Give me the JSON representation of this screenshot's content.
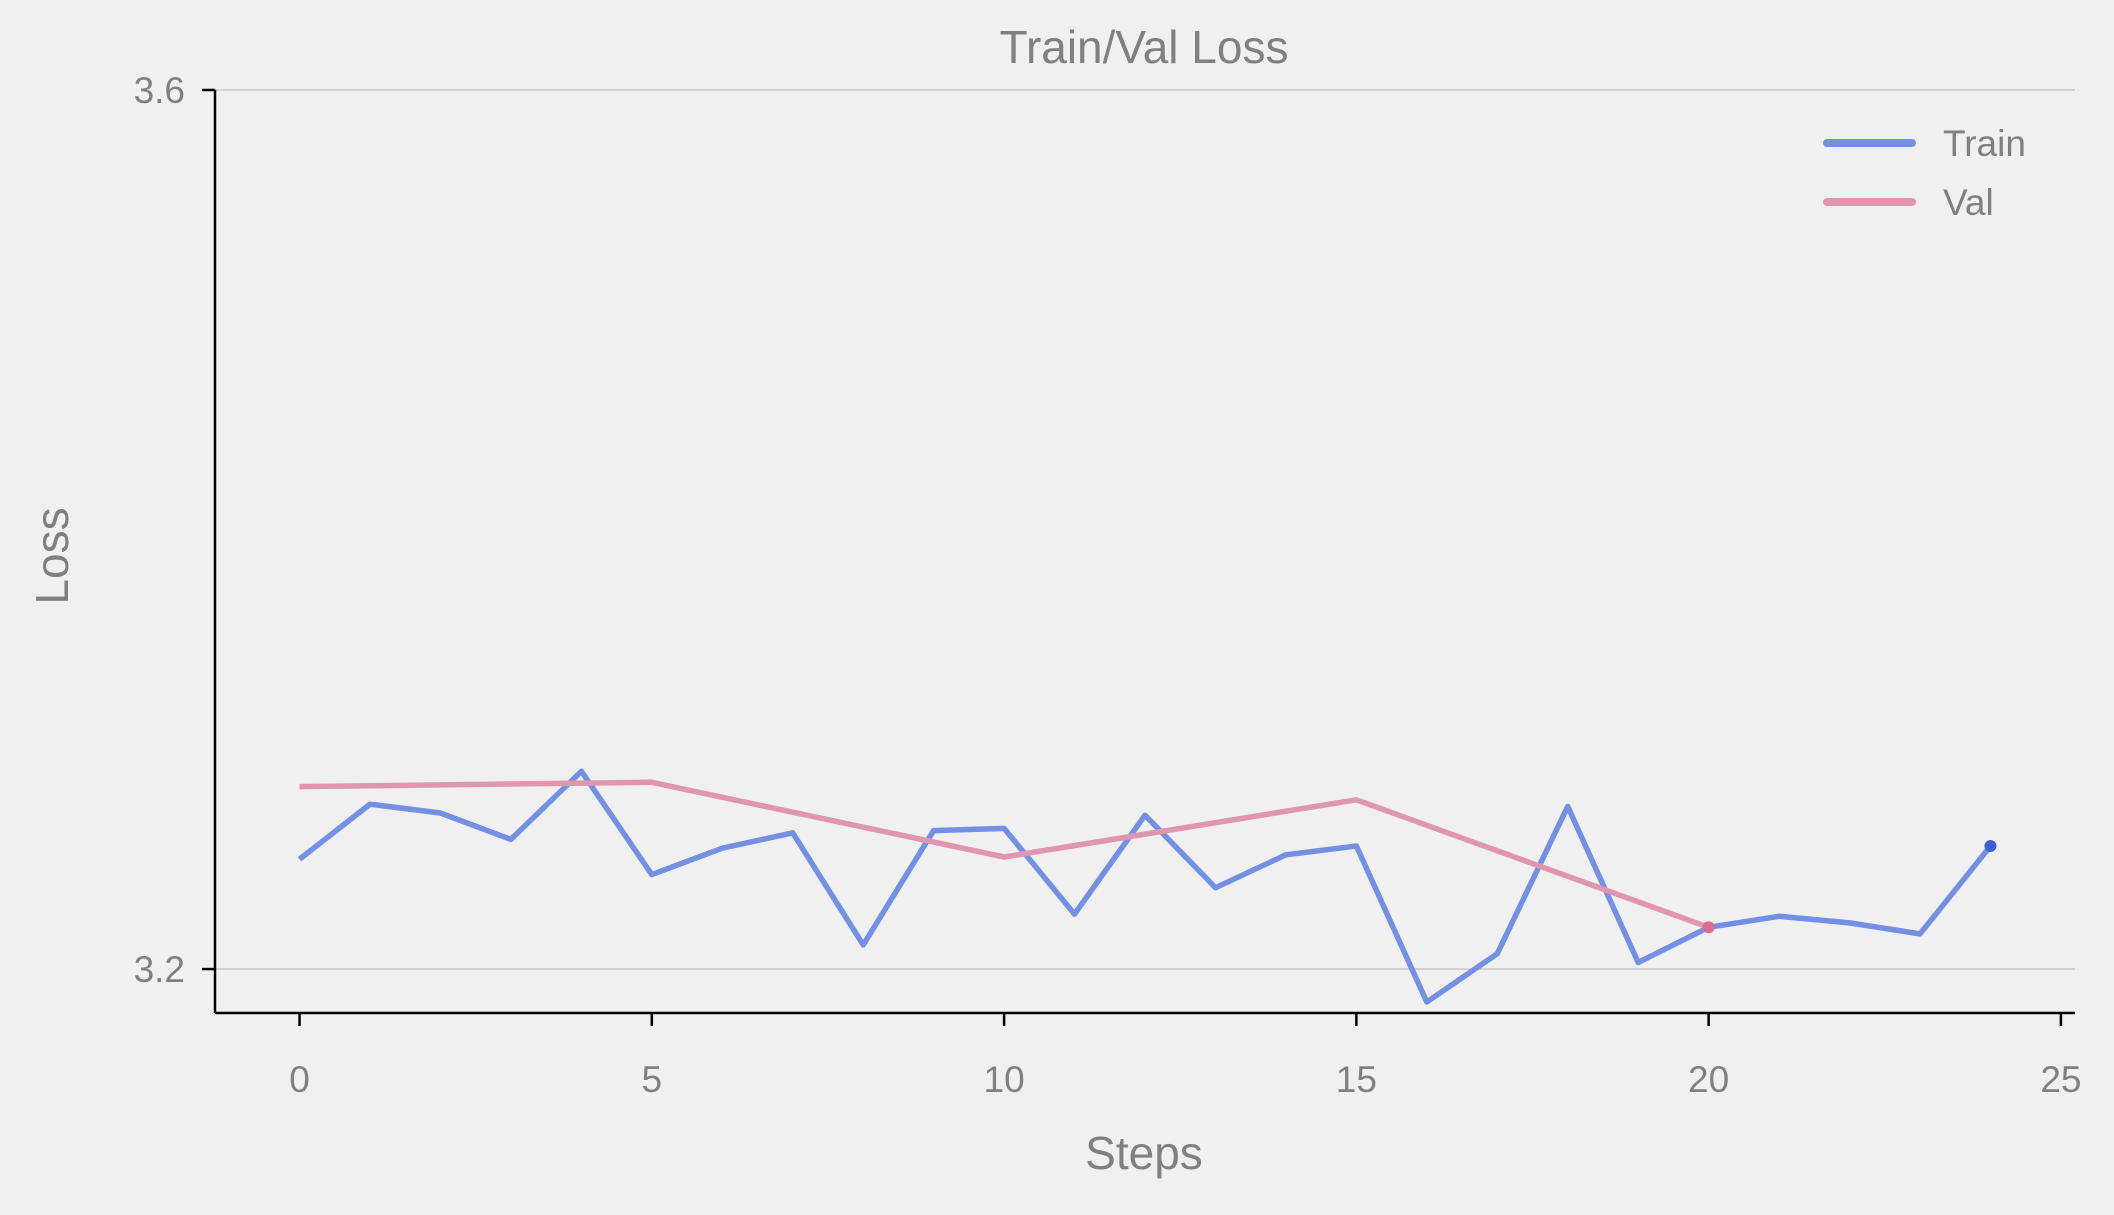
{
  "chart_data": {
    "type": "line",
    "title": "Train/Val Loss",
    "xlabel": "Steps",
    "ylabel": "Loss",
    "xlim": [
      -1.2,
      25.2
    ],
    "ylim": [
      3.18,
      3.6
    ],
    "x_ticks": [
      0,
      5,
      10,
      15,
      20,
      25
    ],
    "x_tick_labels": [
      "0",
      "5",
      "10",
      "15",
      "20",
      "25"
    ],
    "y_ticks": [
      3.2,
      3.6
    ],
    "y_tick_labels": [
      "3.2",
      "3.6"
    ],
    "grid": "horizontal at y ticks",
    "legend": "top-right",
    "series": [
      {
        "name": "Train",
        "color": "#7490e4",
        "end_marker_color": "#3f5fd0",
        "x": [
          0,
          1,
          2,
          3,
          4,
          5,
          6,
          7,
          8,
          9,
          10,
          11,
          12,
          13,
          14,
          15,
          16,
          17,
          18,
          19,
          20,
          21,
          22,
          23,
          24
        ],
        "y": [
          3.25,
          3.275,
          3.271,
          3.259,
          3.29,
          3.243,
          3.255,
          3.262,
          3.211,
          3.263,
          3.264,
          3.225,
          3.27,
          3.237,
          3.252,
          3.256,
          3.185,
          3.207,
          3.274,
          3.203,
          3.219,
          3.224,
          3.221,
          3.216,
          3.256
        ]
      },
      {
        "name": "Val",
        "color": "#e196b0",
        "end_marker_color": "#e06a90",
        "x": [
          0,
          5,
          10,
          15,
          20
        ],
        "y": [
          3.283,
          3.285,
          3.251,
          3.277,
          3.219
        ]
      }
    ]
  }
}
